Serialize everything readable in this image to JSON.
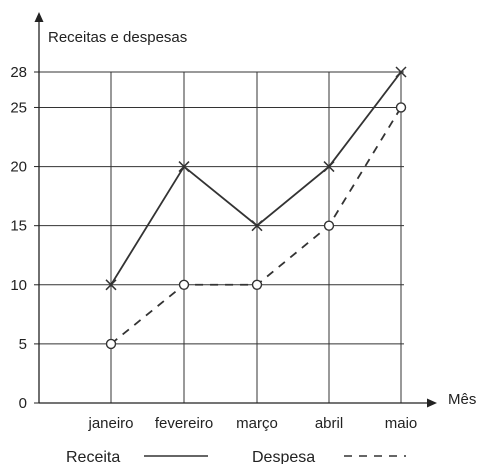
{
  "chart_data": {
    "type": "line",
    "ylabel": "Receitas e despesas",
    "xlabel": "Mês",
    "categories": [
      "janeiro",
      "fevereiro",
      "março",
      "abril",
      "maio"
    ],
    "yticks": [
      0,
      5,
      10,
      15,
      20,
      25,
      28
    ],
    "ylim": [
      0,
      28
    ],
    "grid": true,
    "legend": "bottom",
    "series": [
      {
        "name": "Receita",
        "values": [
          10,
          20,
          15,
          20,
          28
        ],
        "style": "solid",
        "marker": "x",
        "color": "#333333"
      },
      {
        "name": "Despesa",
        "values": [
          5,
          10,
          10,
          15,
          25
        ],
        "style": "dashed",
        "marker": "circle",
        "color": "#333333"
      }
    ]
  }
}
